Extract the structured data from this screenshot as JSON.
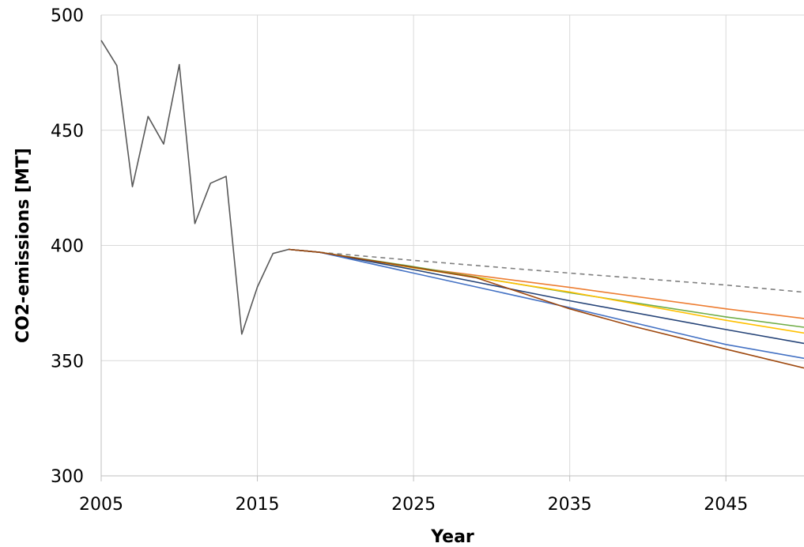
{
  "chart_data": {
    "type": "line",
    "title": "",
    "xlabel": "Year",
    "ylabel": "CO2-emissions [MT]",
    "xlim": [
      2005,
      2050
    ],
    "ylim": [
      300,
      500
    ],
    "x_ticks": [
      2005,
      2015,
      2025,
      2035,
      2045
    ],
    "y_ticks": [
      300,
      350,
      400,
      450,
      500
    ],
    "grid": true,
    "legend": "none",
    "series": [
      {
        "color": "#595959",
        "dash": "solid",
        "x": [
          2005,
          2006,
          2007,
          2008,
          2009,
          2010,
          2011,
          2012,
          2013,
          2014,
          2015,
          2016,
          2017,
          2019
        ],
        "y": [
          489,
          478,
          425.5,
          456,
          444,
          478.5,
          409.5,
          427,
          430,
          361.5,
          382,
          396.5,
          398.3,
          397
        ]
      },
      {
        "color": "#7f7f7f",
        "dash": "dashed",
        "x": [
          2019,
          2025,
          2035,
          2045,
          2050
        ],
        "y": [
          397,
          393.5,
          388,
          382.8,
          379.7
        ]
      },
      {
        "color": "#ed7d31",
        "dash": "solid",
        "x": [
          2017,
          2019,
          2025,
          2035,
          2045,
          2050
        ],
        "y": [
          398.3,
          397,
          390.5,
          381.8,
          372.5,
          368.3
        ]
      },
      {
        "color": "#70ad47",
        "dash": "solid",
        "x": [
          2017,
          2019,
          2025,
          2035,
          2045,
          2050
        ],
        "y": [
          398.3,
          397,
          390.8,
          379.5,
          369,
          364.5
        ]
      },
      {
        "color": "#ffc000",
        "dash": "solid",
        "x": [
          2017,
          2019,
          2025,
          2035,
          2045,
          2050
        ],
        "y": [
          398.3,
          397,
          390.3,
          379.8,
          367.5,
          362
        ]
      },
      {
        "color": "#264478",
        "dash": "solid",
        "x": [
          2017,
          2019,
          2025,
          2035,
          2045,
          2050
        ],
        "y": [
          398.3,
          397,
          389.5,
          376,
          363.5,
          357.5
        ]
      },
      {
        "color": "#4472c4",
        "dash": "solid",
        "x": [
          2017,
          2019,
          2025,
          2035,
          2045,
          2050
        ],
        "y": [
          398.3,
          397,
          388,
          373,
          357,
          351
        ]
      },
      {
        "color": "#9e480e",
        "dash": "solid",
        "x": [
          2017,
          2019,
          2025,
          2029,
          2035,
          2039,
          2045,
          2050
        ],
        "y": [
          398.3,
          397,
          390.5,
          386,
          372.5,
          365,
          355,
          346.8
        ]
      }
    ]
  }
}
